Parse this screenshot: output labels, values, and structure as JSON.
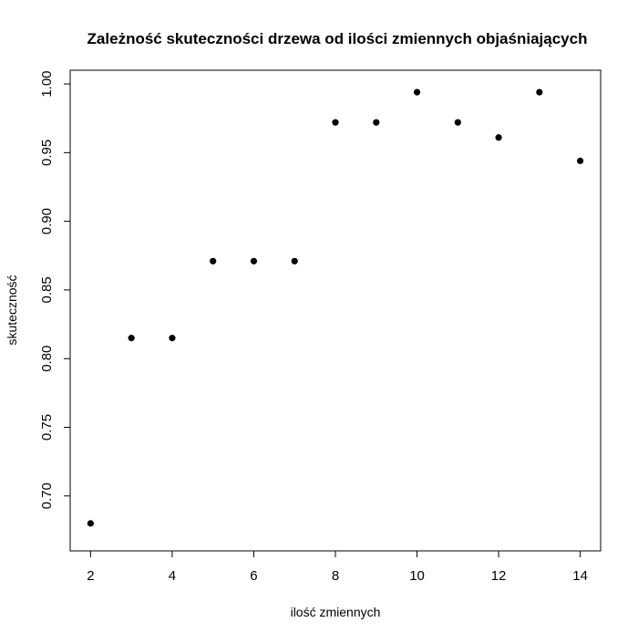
{
  "chart_data": {
    "type": "scatter",
    "title": "Zależność skuteczności drzewa od ilości zmiennych objaśniających",
    "xlabel": "ilość zmiennych",
    "ylabel": "skuteczność",
    "xlim": [
      1.5,
      14.5
    ],
    "ylim": [
      0.66,
      1.01
    ],
    "xticks": [
      2,
      4,
      6,
      8,
      10,
      12,
      14
    ],
    "xtick_labels": [
      "2",
      "4",
      "6",
      "8",
      "10",
      "12",
      "14"
    ],
    "yticks": [
      0.7,
      0.75,
      0.8,
      0.85,
      0.9,
      0.95,
      1.0
    ],
    "ytick_labels": [
      "0.70",
      "0.75",
      "0.80",
      "0.85",
      "0.90",
      "0.95",
      "1.00"
    ],
    "grid": false,
    "legend": "none",
    "colors": {
      "points": "#000000",
      "axes": "#000000",
      "background": "#ffffff"
    },
    "series": [
      {
        "x": [
          2,
          3,
          4,
          5,
          6,
          7,
          8,
          9,
          10,
          11,
          12,
          13,
          14
        ],
        "y": [
          0.68,
          0.815,
          0.815,
          0.871,
          0.871,
          0.871,
          0.972,
          0.972,
          0.994,
          0.972,
          0.961,
          0.994,
          0.944
        ]
      }
    ]
  }
}
